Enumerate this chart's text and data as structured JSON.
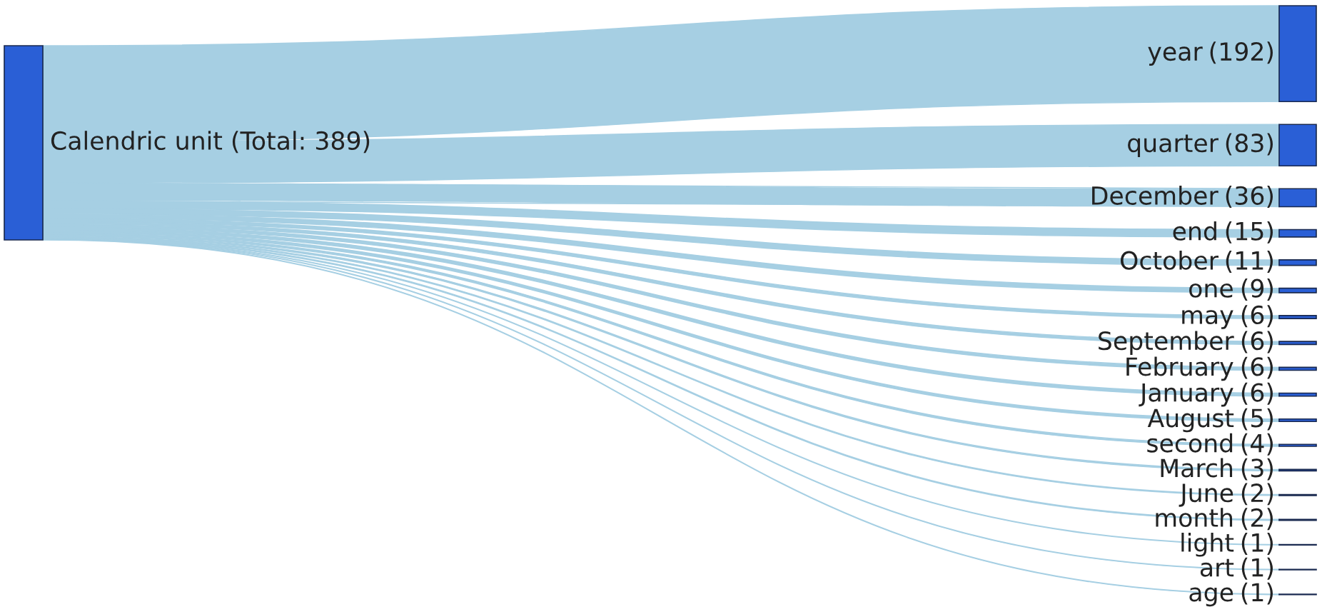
{
  "chart_data": {
    "type": "other",
    "annotations": [
      "Calendric unit (Total: 389)"
    ],
    "categories": [
      "year",
      "quarter",
      "December",
      "end",
      "October",
      "one",
      "may",
      "September",
      "February",
      "January",
      "August",
      "second",
      "March",
      "June",
      "month",
      "light",
      "art",
      "age"
    ],
    "values": [
      192,
      83,
      36,
      15,
      11,
      9,
      6,
      6,
      6,
      6,
      5,
      4,
      3,
      2,
      2,
      1,
      1,
      1
    ],
    "value_labels": [
      "(192)",
      "(83)",
      "(36)",
      "(15)",
      "(11)",
      "(9)",
      "(6)",
      "(6)",
      "(6)",
      "(6)",
      "(5)",
      "(4)",
      "(3)",
      "(2)",
      "(2)",
      "(1)",
      "(1)",
      "(1)"
    ],
    "color": "#a6cfe3"
  }
}
